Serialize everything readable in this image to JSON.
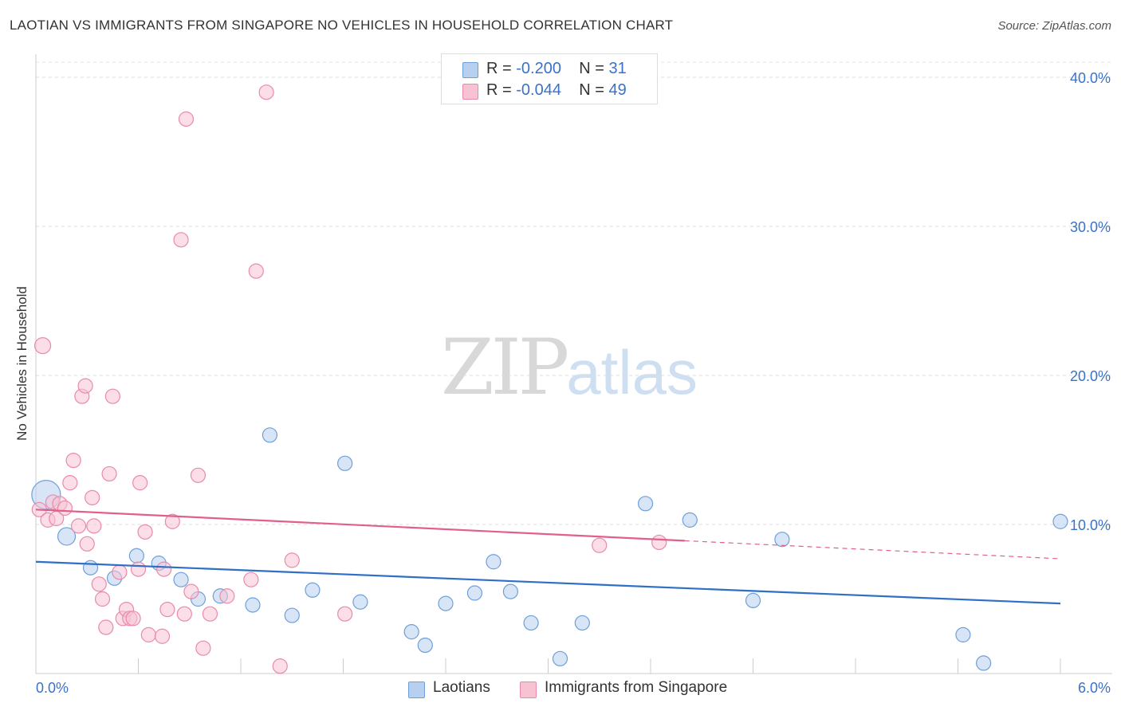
{
  "title": "LAOTIAN VS IMMIGRANTS FROM SINGAPORE NO VEHICLES IN HOUSEHOLD CORRELATION CHART",
  "source": "Source: ZipAtlas.com",
  "watermark": {
    "zip": "ZIP",
    "atlas": "atlas"
  },
  "legend": {
    "laotian": {
      "r_label": "R =",
      "r_value": "-0.200",
      "n_label": "N =",
      "n_value": "31"
    },
    "singapore": {
      "r_label": "R =",
      "r_value": "-0.044",
      "n_label": "N =",
      "n_value": "49"
    }
  },
  "colors": {
    "laotian_fill": "#b7d0f0",
    "laotian_stroke": "#6f9fd8",
    "laotian_line": "#2f6fc6",
    "singapore_fill": "#f7c3d3",
    "singapore_stroke": "#e98aab",
    "singapore_line": "#e0608a",
    "tick_label": "#3a72c8"
  },
  "chart_data": {
    "type": "scatter",
    "title": "LAOTIAN VS IMMIGRANTS FROM SINGAPORE NO VEHICLES IN HOUSEHOLD CORRELATION CHART",
    "xlabel": "",
    "ylabel": "No Vehicles in Household",
    "xlim": [
      0,
      6
    ],
    "ylim": [
      0,
      40
    ],
    "x_tick_labels": [
      "0.0%",
      "6.0%"
    ],
    "y_ticks": [
      10,
      20,
      30,
      40
    ],
    "y_tick_labels": [
      "10.0%",
      "20.0%",
      "30.0%",
      "40.0%"
    ],
    "grid": true,
    "legend_position": "top-center",
    "series": [
      {
        "name": "Laotians",
        "points": [
          [
            0.06,
            12.0,
            18
          ],
          [
            0.18,
            9.2,
            11
          ],
          [
            0.32,
            7.1,
            9
          ],
          [
            0.46,
            6.4,
            9
          ],
          [
            0.59,
            7.9,
            9
          ],
          [
            0.72,
            7.4,
            9
          ],
          [
            0.85,
            6.3,
            9
          ],
          [
            0.95,
            5.0,
            9
          ],
          [
            1.08,
            5.2,
            9
          ],
          [
            1.27,
            4.6,
            9
          ],
          [
            1.37,
            16.0,
            9
          ],
          [
            1.5,
            3.9,
            9
          ],
          [
            1.62,
            5.6,
            9
          ],
          [
            1.81,
            14.1,
            9
          ],
          [
            1.9,
            4.8,
            9
          ],
          [
            2.2,
            2.8,
            9
          ],
          [
            2.28,
            1.9,
            9
          ],
          [
            2.4,
            4.7,
            9
          ],
          [
            2.57,
            5.4,
            9
          ],
          [
            2.68,
            7.5,
            9
          ],
          [
            2.78,
            5.5,
            9
          ],
          [
            2.9,
            3.4,
            9
          ],
          [
            3.07,
            1.0,
            9
          ],
          [
            3.2,
            3.4,
            9
          ],
          [
            3.57,
            11.4,
            9
          ],
          [
            3.83,
            10.3,
            9
          ],
          [
            4.2,
            4.9,
            9
          ],
          [
            4.37,
            9.0,
            9
          ],
          [
            5.43,
            2.6,
            9
          ],
          [
            5.55,
            0.7,
            9
          ],
          [
            6.0,
            10.2,
            9
          ]
        ],
        "trend": {
          "x": [
            0,
            6
          ],
          "y": [
            7.5,
            4.7
          ],
          "solid_until": 6
        }
      },
      {
        "name": "Immigrants from Singapore",
        "points": [
          [
            0.02,
            11.0,
            9
          ],
          [
            0.04,
            22.0,
            10
          ],
          [
            0.07,
            10.3,
            9
          ],
          [
            0.1,
            11.5,
            9
          ],
          [
            0.12,
            10.4,
            9
          ],
          [
            0.14,
            11.4,
            9
          ],
          [
            0.17,
            11.1,
            9
          ],
          [
            0.2,
            12.8,
            9
          ],
          [
            0.22,
            14.3,
            9
          ],
          [
            0.25,
            9.9,
            9
          ],
          [
            0.27,
            18.6,
            9
          ],
          [
            0.29,
            19.3,
            9
          ],
          [
            0.3,
            8.7,
            9
          ],
          [
            0.33,
            11.8,
            9
          ],
          [
            0.34,
            9.9,
            9
          ],
          [
            0.37,
            6.0,
            9
          ],
          [
            0.39,
            5.0,
            9
          ],
          [
            0.41,
            3.1,
            9
          ],
          [
            0.43,
            13.4,
            9
          ],
          [
            0.45,
            18.6,
            9
          ],
          [
            0.49,
            6.8,
            9
          ],
          [
            0.51,
            3.7,
            9
          ],
          [
            0.53,
            4.3,
            9
          ],
          [
            0.55,
            3.7,
            9
          ],
          [
            0.57,
            3.7,
            9
          ],
          [
            0.6,
            7.0,
            9
          ],
          [
            0.61,
            12.8,
            9
          ],
          [
            0.64,
            9.5,
            9
          ],
          [
            0.66,
            2.6,
            9
          ],
          [
            0.74,
            2.5,
            9
          ],
          [
            0.75,
            7.0,
            9
          ],
          [
            0.77,
            4.3,
            9
          ],
          [
            0.8,
            10.2,
            9
          ],
          [
            0.85,
            29.1,
            9
          ],
          [
            0.87,
            4.0,
            9
          ],
          [
            0.88,
            37.2,
            9
          ],
          [
            0.91,
            5.5,
            9
          ],
          [
            0.95,
            13.3,
            9
          ],
          [
            0.98,
            1.7,
            9
          ],
          [
            1.02,
            4.0,
            9
          ],
          [
            1.12,
            5.2,
            9
          ],
          [
            1.26,
            6.3,
            9
          ],
          [
            1.29,
            27.0,
            9
          ],
          [
            1.35,
            39.0,
            9
          ],
          [
            1.43,
            0.5,
            9
          ],
          [
            1.5,
            7.6,
            9
          ],
          [
            1.81,
            4.0,
            9
          ],
          [
            3.3,
            8.6,
            9
          ],
          [
            3.65,
            8.8,
            9
          ]
        ],
        "trend": {
          "x": [
            0,
            6
          ],
          "y": [
            11.0,
            7.7
          ],
          "solid_until": 3.8
        }
      }
    ]
  },
  "bottom_legend": [
    "Laotians",
    "Immigrants from Singapore"
  ]
}
